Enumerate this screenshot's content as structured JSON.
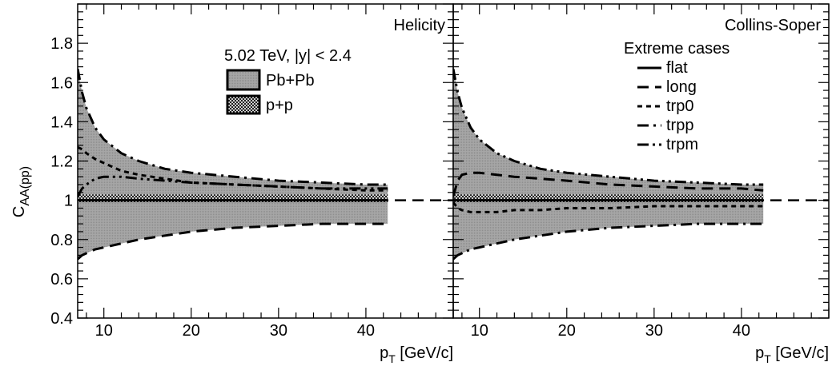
{
  "chart_data": {
    "type": "line",
    "ylabel": "C_{AA(pp)}",
    "xlabel": "p_T [GeV/c]",
    "xlim": [
      7,
      50
    ],
    "ylim": [
      0.4,
      2.0
    ],
    "grid": false,
    "x_ticks": [
      10,
      20,
      30,
      40
    ],
    "y_ticks": [
      0.4,
      0.6,
      0.8,
      1,
      1.2,
      1.4,
      1.6,
      1.8
    ],
    "reference_line": 1,
    "x": [
      7,
      7.5,
      8,
      9,
      10,
      12,
      14,
      17,
      20,
      25,
      30,
      35,
      40,
      42.5
    ],
    "legend_header": "5.02 TeV, |y| < 2.4",
    "legend_bands": [
      {
        "name": "Pb+Pb",
        "color": "#a0a0a0",
        "pattern": "solid"
      },
      {
        "name": "p+p",
        "color": "#000000",
        "pattern": "crosshatch"
      }
    ],
    "extreme_header": "Extreme cases",
    "extreme_legend": [
      {
        "name": "flat",
        "dash": "solid"
      },
      {
        "name": "long",
        "dash": "dash"
      },
      {
        "name": "trp0",
        "dash": "dot"
      },
      {
        "name": "trpp",
        "dash": "dashdot"
      },
      {
        "name": "trpm",
        "dash": "dashdotdot"
      }
    ],
    "panels": [
      {
        "title": "Helicity",
        "pbpb_band": {
          "upper": [
            1.67,
            1.55,
            1.47,
            1.37,
            1.31,
            1.24,
            1.2,
            1.16,
            1.14,
            1.12,
            1.1,
            1.09,
            1.08,
            1.08
          ],
          "lower": [
            0.7,
            0.72,
            0.73,
            0.75,
            0.76,
            0.78,
            0.8,
            0.82,
            0.84,
            0.86,
            0.87,
            0.88,
            0.88,
            0.88
          ]
        },
        "pp_band": {
          "upper": [
            1.03,
            1.03,
            1.03,
            1.03,
            1.03,
            1.03,
            1.03,
            1.03,
            1.03,
            1.03,
            1.03,
            1.03,
            1.03,
            1.03
          ],
          "lower": [
            0.99,
            0.99,
            0.99,
            0.99,
            0.99,
            0.99,
            0.99,
            0.99,
            0.99,
            0.99,
            0.99,
            0.99,
            0.99,
            0.99
          ]
        },
        "series": [
          {
            "name": "flat",
            "values": [
              1.0,
              1.0,
              1.0,
              1.0,
              1.0,
              1.0,
              1.0,
              1.0,
              1.0,
              1.0,
              1.0,
              1.0,
              1.0,
              1.0
            ]
          },
          {
            "name": "long",
            "values": [
              0.7,
              0.72,
              0.73,
              0.75,
              0.76,
              0.78,
              0.8,
              0.82,
              0.84,
              0.86,
              0.87,
              0.88,
              0.88,
              0.88
            ]
          },
          {
            "name": "trp0",
            "values": [
              1.27,
              1.26,
              1.24,
              1.21,
              1.19,
              1.15,
              1.13,
              1.11,
              1.09,
              1.08,
              1.07,
              1.06,
              1.05,
              1.05
            ]
          },
          {
            "name": "trpp",
            "values": [
              1.67,
              1.55,
              1.47,
              1.37,
              1.31,
              1.24,
              1.2,
              1.16,
              1.14,
              1.12,
              1.1,
              1.09,
              1.08,
              1.08
            ]
          },
          {
            "name": "trpm",
            "values": [
              1.02,
              1.06,
              1.08,
              1.11,
              1.12,
              1.12,
              1.11,
              1.1,
              1.09,
              1.08,
              1.07,
              1.06,
              1.06,
              1.06
            ]
          }
        ]
      },
      {
        "title": "Collins-Soper",
        "pbpb_band": {
          "upper": [
            1.67,
            1.55,
            1.47,
            1.37,
            1.31,
            1.24,
            1.2,
            1.16,
            1.14,
            1.12,
            1.1,
            1.09,
            1.08,
            1.08
          ],
          "lower": [
            0.7,
            0.72,
            0.73,
            0.75,
            0.76,
            0.78,
            0.8,
            0.82,
            0.84,
            0.86,
            0.87,
            0.88,
            0.88,
            0.88
          ]
        },
        "pp_band": {
          "upper": [
            1.03,
            1.03,
            1.03,
            1.03,
            1.03,
            1.03,
            1.03,
            1.03,
            1.03,
            1.03,
            1.03,
            1.03,
            1.03,
            1.03
          ],
          "lower": [
            0.99,
            0.99,
            0.99,
            0.99,
            0.99,
            0.99,
            0.99,
            0.99,
            0.99,
            0.99,
            0.99,
            0.99,
            0.99,
            0.99
          ]
        },
        "series": [
          {
            "name": "flat",
            "values": [
              1.0,
              1.0,
              1.0,
              1.0,
              1.0,
              1.0,
              1.0,
              1.0,
              1.0,
              1.0,
              1.0,
              1.0,
              1.0,
              1.0
            ]
          },
          {
            "name": "long",
            "values": [
              1.02,
              1.1,
              1.13,
              1.14,
              1.14,
              1.13,
              1.12,
              1.11,
              1.1,
              1.08,
              1.07,
              1.06,
              1.06,
              1.05
            ]
          },
          {
            "name": "trp0",
            "values": [
              0.99,
              0.96,
              0.95,
              0.94,
              0.94,
              0.94,
              0.95,
              0.95,
              0.96,
              0.96,
              0.97,
              0.97,
              0.97,
              0.97
            ]
          },
          {
            "name": "trpp",
            "values": [
              0.7,
              0.72,
              0.73,
              0.75,
              0.76,
              0.78,
              0.8,
              0.82,
              0.84,
              0.86,
              0.87,
              0.88,
              0.88,
              0.88
            ]
          },
          {
            "name": "trpm",
            "values": [
              1.67,
              1.55,
              1.47,
              1.37,
              1.31,
              1.24,
              1.2,
              1.16,
              1.14,
              1.12,
              1.1,
              1.09,
              1.08,
              1.08
            ]
          }
        ]
      }
    ]
  }
}
